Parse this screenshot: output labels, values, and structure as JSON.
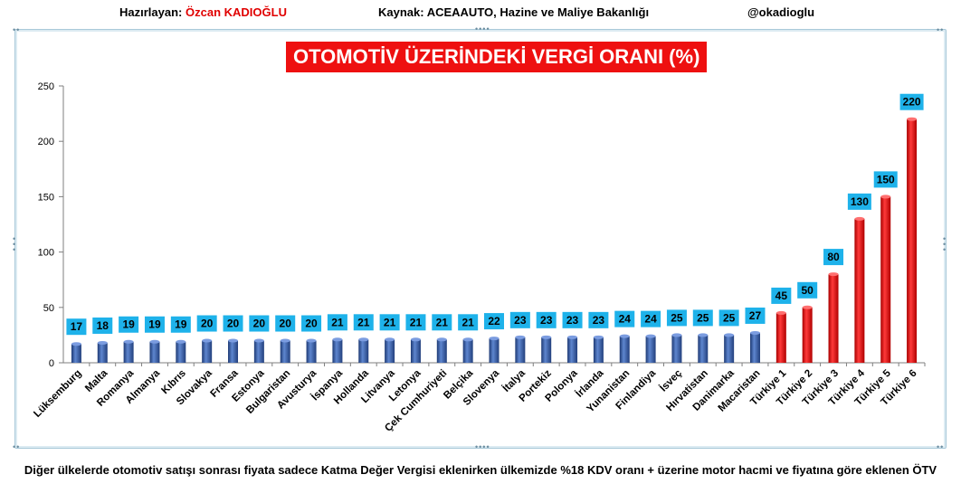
{
  "header": {
    "prepared_label": "Hazırlayan:",
    "author": "Özcan KADIOĞLU",
    "source": "Kaynak: ACEAAUTO, Hazine ve Maliye Bakanlığı",
    "handle": "@okadioglu"
  },
  "footer": "Diğer ülkelerde otomotiv satışı sonrası fiyata sadece Katma Değer Vergisi eklenirken ülkemizde %18 KDV oranı + üzerine motor hacmi ve fiyatına göre eklenen ÖTV",
  "colors": {
    "blue_bar": "#3b5fa8",
    "red_bar": "#ee1010",
    "label_bg": "#1eb2ea"
  },
  "chart_data": {
    "type": "bar",
    "title": "OTOMOTİV ÜZERİNDEKİ VERGİ ORANI (%)",
    "xlabel": "",
    "ylabel": "",
    "ylim": [
      0,
      250
    ],
    "yticks": [
      0,
      50,
      100,
      150,
      200,
      250
    ],
    "grid": false,
    "categories": [
      "Lüksemburg",
      "Malta",
      "Romanya",
      "Almanya",
      "Kıbrıs",
      "Slovakya",
      "Fransa",
      "Estonya",
      "Bulgaristan",
      "Avusturya",
      "İspanya",
      "Hollanda",
      "Litvanya",
      "Letonya",
      "Çek Cumhuriyeti",
      "Belçika",
      "Slovenya",
      "İtalya",
      "Portekiz",
      "Polonya",
      "İrlanda",
      "Yunanistan",
      "Finlandiya",
      "İsveç",
      "Hırvatistan",
      "Danimarka",
      "Macaristan",
      "Türkiye 1",
      "Türkiye 2",
      "Türkiye 3",
      "Türkiye 4",
      "Türkiye 5",
      "Türkiye 6"
    ],
    "values": [
      17,
      18,
      19,
      19,
      19,
      20,
      20,
      20,
      20,
      20,
      21,
      21,
      21,
      21,
      21,
      21,
      22,
      23,
      23,
      23,
      23,
      24,
      24,
      25,
      25,
      25,
      27,
      45,
      50,
      80,
      130,
      150,
      220
    ],
    "highlight_from_index": 27
  }
}
